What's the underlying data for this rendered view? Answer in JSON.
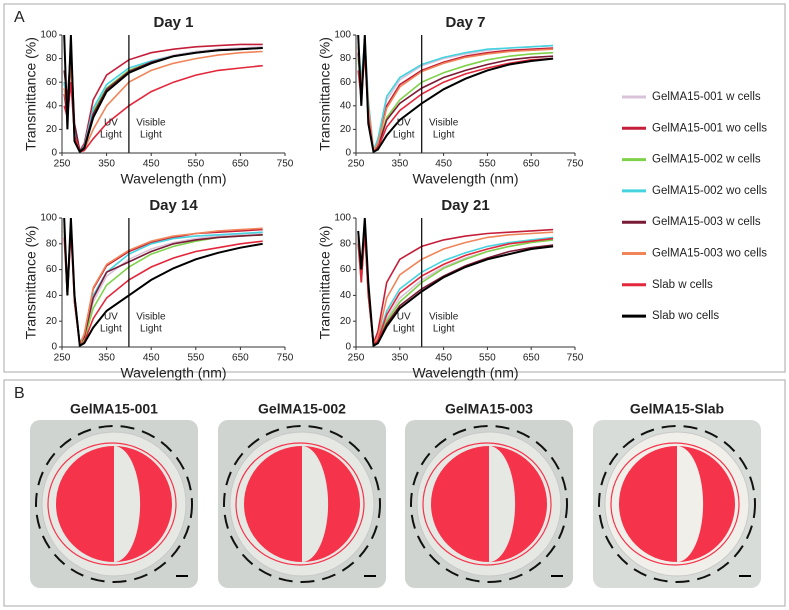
{
  "panels": {
    "a": "A",
    "b": "B"
  },
  "legend": [
    {
      "name": "GelMA15-001 w cells",
      "color": "#d9c3d9"
    },
    {
      "name": "GelMA15-001 wo cells",
      "color": "#c41e3a"
    },
    {
      "name": "GelMA15-002 w cells",
      "color": "#7fd14a"
    },
    {
      "name": "GelMA15-002 wo cells",
      "color": "#45d3e0"
    },
    {
      "name": "GelMA15-003 w cells",
      "color": "#7a1a35"
    },
    {
      "name": "GelMA15-003 wo cells",
      "color": "#f0855a"
    },
    {
      "name": "Slab w cells",
      "color": "#e3263a"
    },
    {
      "name": "Slab wo cells",
      "color": "#000000"
    }
  ],
  "photos": [
    "GelMA15-001",
    "GelMA15-002",
    "GelMA15-003",
    "GelMA15-Slab"
  ],
  "chart_data": [
    {
      "type": "line",
      "title": "Day 1",
      "x_label": "Wavelength (nm)",
      "y_label": "Transmittance (%)",
      "xlim": [
        250,
        750
      ],
      "xticks": [
        250,
        350,
        450,
        550,
        650,
        750
      ],
      "ylim": [
        0,
        100
      ],
      "yticks": [
        0,
        20,
        40,
        60,
        80,
        100
      ],
      "divider_x": 400,
      "uv_label": [
        "UV",
        "Light"
      ],
      "visible_label": [
        "Visible",
        "Light"
      ],
      "x": [
        255,
        262,
        270,
        278,
        290,
        300,
        320,
        350,
        400,
        450,
        500,
        550,
        600,
        650,
        700
      ],
      "series": [
        {
          "values": [
            60,
            40,
            80,
            20,
            2,
            5,
            35,
            55,
            70,
            78,
            83,
            86,
            88,
            89,
            90
          ]
        },
        {
          "values": [
            50,
            30,
            85,
            10,
            2,
            8,
            45,
            66,
            79,
            85,
            88,
            90,
            91,
            92,
            92
          ]
        },
        {
          "values": [
            60,
            40,
            80,
            20,
            2,
            5,
            35,
            55,
            70,
            77,
            82,
            85,
            87,
            88,
            89
          ]
        },
        {
          "values": [
            60,
            40,
            80,
            20,
            2,
            6,
            38,
            58,
            72,
            78,
            82,
            85,
            87,
            88,
            89
          ]
        },
        {
          "values": [
            70,
            45,
            90,
            25,
            2,
            5,
            33,
            54,
            69,
            77,
            82,
            85,
            87,
            88,
            89
          ]
        },
        {
          "values": [
            55,
            35,
            75,
            15,
            1,
            3,
            20,
            40,
            60,
            70,
            76,
            80,
            83,
            85,
            86
          ]
        },
        {
          "values": [
            40,
            30,
            60,
            15,
            1,
            2,
            12,
            25,
            40,
            52,
            60,
            66,
            70,
            72,
            74
          ]
        },
        {
          "values": [
            100,
            20,
            100,
            10,
            1,
            4,
            30,
            52,
            68,
            76,
            82,
            85,
            87,
            88,
            89
          ]
        }
      ]
    },
    {
      "type": "line",
      "title": "Day 7",
      "x_label": "Wavelength (nm)",
      "y_label": "Transmittance (%)",
      "xlim": [
        250,
        750
      ],
      "xticks": [
        250,
        350,
        450,
        550,
        650,
        750
      ],
      "ylim": [
        0,
        100
      ],
      "yticks": [
        0,
        20,
        40,
        60,
        80,
        100
      ],
      "divider_x": 400,
      "uv_label": [
        "UV",
        "Light"
      ],
      "visible_label": [
        "Visible",
        "Light"
      ],
      "x": [
        255,
        262,
        270,
        278,
        290,
        300,
        320,
        350,
        400,
        450,
        500,
        550,
        600,
        650,
        700
      ],
      "series": [
        {
          "values": [
            90,
            60,
            95,
            40,
            2,
            10,
            45,
            62,
            74,
            80,
            84,
            87,
            89,
            90,
            91
          ]
        },
        {
          "values": [
            85,
            55,
            90,
            35,
            2,
            8,
            40,
            58,
            70,
            77,
            82,
            85,
            87,
            88,
            89
          ]
        },
        {
          "values": [
            80,
            50,
            90,
            30,
            2,
            6,
            30,
            45,
            60,
            68,
            74,
            79,
            82,
            84,
            85
          ]
        },
        {
          "values": [
            95,
            60,
            98,
            45,
            2,
            12,
            48,
            64,
            75,
            81,
            85,
            88,
            89,
            90,
            91
          ]
        },
        {
          "values": [
            85,
            50,
            92,
            35,
            1,
            5,
            28,
            42,
            55,
            64,
            70,
            75,
            79,
            81,
            82
          ]
        },
        {
          "values": [
            90,
            55,
            95,
            40,
            2,
            8,
            38,
            56,
            69,
            76,
            81,
            84,
            86,
            87,
            88
          ]
        },
        {
          "values": [
            70,
            45,
            85,
            30,
            1,
            4,
            22,
            36,
            50,
            60,
            67,
            72,
            76,
            79,
            80
          ]
        },
        {
          "values": [
            100,
            40,
            100,
            25,
            1,
            3,
            15,
            28,
            42,
            54,
            63,
            70,
            75,
            78,
            80
          ]
        }
      ]
    },
    {
      "type": "line",
      "title": "Day 14",
      "x_label": "Wavelength (nm)",
      "y_label": "Transmittance (%)",
      "xlim": [
        250,
        750
      ],
      "xticks": [
        250,
        350,
        450,
        550,
        650,
        750
      ],
      "ylim": [
        0,
        100
      ],
      "yticks": [
        0,
        20,
        40,
        60,
        80,
        100
      ],
      "divider_x": 400,
      "uv_label": [
        "UV",
        "Light"
      ],
      "visible_label": [
        "Visible",
        "Light"
      ],
      "x": [
        255,
        262,
        270,
        278,
        290,
        300,
        320,
        350,
        400,
        450,
        500,
        550,
        600,
        650,
        700
      ],
      "series": [
        {
          "values": [
            95,
            45,
            90,
            40,
            3,
            8,
            35,
            55,
            68,
            76,
            81,
            84,
            86,
            87,
            88
          ]
        },
        {
          "values": [
            90,
            40,
            95,
            35,
            2,
            10,
            45,
            63,
            74,
            81,
            85,
            88,
            89,
            90,
            91
          ]
        },
        {
          "values": [
            90,
            40,
            92,
            38,
            2,
            6,
            30,
            48,
            62,
            72,
            78,
            82,
            85,
            86,
            87
          ]
        },
        {
          "values": [
            92,
            42,
            94,
            40,
            3,
            9,
            40,
            58,
            72,
            80,
            84,
            86,
            87,
            88,
            89
          ]
        },
        {
          "values": [
            95,
            45,
            96,
            40,
            2,
            8,
            38,
            58,
            66,
            74,
            80,
            83,
            85,
            86,
            87
          ]
        },
        {
          "values": [
            93,
            44,
            95,
            38,
            2,
            10,
            46,
            64,
            75,
            82,
            86,
            88,
            90,
            91,
            92
          ]
        },
        {
          "values": [
            85,
            40,
            90,
            35,
            1,
            4,
            22,
            38,
            52,
            62,
            69,
            74,
            77,
            80,
            82
          ]
        },
        {
          "values": [
            100,
            40,
            100,
            40,
            1,
            3,
            15,
            28,
            40,
            52,
            61,
            68,
            73,
            77,
            80
          ]
        }
      ]
    },
    {
      "type": "line",
      "title": "Day 21",
      "x_label": "Wavelength (nm)",
      "y_label": "Transmittance (%)",
      "xlim": [
        250,
        750
      ],
      "xticks": [
        250,
        350,
        450,
        550,
        650,
        750
      ],
      "ylim": [
        0,
        100
      ],
      "yticks": [
        0,
        20,
        40,
        60,
        80,
        100
      ],
      "divider_x": 400,
      "uv_label": [
        "UV",
        "Light"
      ],
      "visible_label": [
        "Visible",
        "Light"
      ],
      "x": [
        255,
        262,
        270,
        278,
        290,
        300,
        320,
        350,
        400,
        450,
        500,
        550,
        600,
        650,
        700
      ],
      "series": [
        {
          "values": [
            80,
            50,
            90,
            40,
            2,
            5,
            22,
            38,
            52,
            62,
            69,
            74,
            78,
            81,
            83
          ]
        },
        {
          "values": [
            85,
            55,
            95,
            45,
            3,
            12,
            50,
            68,
            78,
            83,
            86,
            88,
            89,
            90,
            91
          ]
        },
        {
          "values": [
            80,
            50,
            90,
            40,
            2,
            5,
            20,
            35,
            50,
            61,
            68,
            74,
            78,
            81,
            83
          ]
        },
        {
          "values": [
            82,
            52,
            92,
            42,
            2,
            6,
            28,
            45,
            58,
            67,
            73,
            78,
            81,
            83,
            85
          ]
        },
        {
          "values": [
            85,
            55,
            95,
            45,
            2,
            4,
            18,
            32,
            45,
            55,
            63,
            69,
            74,
            77,
            79
          ]
        },
        {
          "values": [
            85,
            55,
            92,
            42,
            2,
            8,
            38,
            56,
            68,
            76,
            81,
            85,
            87,
            88,
            89
          ]
        },
        {
          "values": [
            80,
            50,
            90,
            40,
            2,
            5,
            25,
            42,
            55,
            64,
            71,
            76,
            80,
            82,
            84
          ]
        },
        {
          "values": [
            90,
            60,
            100,
            50,
            1,
            3,
            16,
            30,
            43,
            54,
            62,
            68,
            72,
            76,
            78
          ]
        }
      ]
    }
  ]
}
